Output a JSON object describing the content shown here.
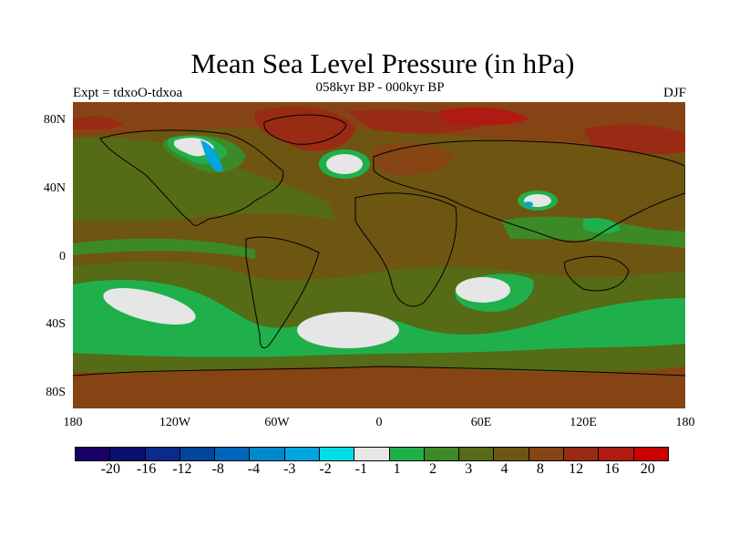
{
  "title": "Mean Sea Level Pressure (in hPa)",
  "subtitle": "058kyr BP - 000kyr BP",
  "left_label": "Expt = tdxoO-tdxoa",
  "right_label": "DJF",
  "lat_labels": [
    "80N",
    "40N",
    "0",
    "40S",
    "80S"
  ],
  "lon_labels": [
    "180",
    "120W",
    "60W",
    "0",
    "60E",
    "120E",
    "180"
  ],
  "colorbar": {
    "colors": [
      "#1a0066",
      "#080f6e",
      "#0a2a8c",
      "#00469c",
      "#0066bb",
      "#0088cc",
      "#00a6dd",
      "#00dde6",
      "#e6e6e6",
      "#1fb04c",
      "#3c8a27",
      "#556b16",
      "#6e5512",
      "#864414",
      "#992b14",
      "#b01a12",
      "#cc0000"
    ],
    "labels": [
      "-20",
      "-16",
      "-12",
      "-8",
      "-4",
      "-3",
      "-2",
      "-1",
      "1",
      "2",
      "3",
      "4",
      "8",
      "12",
      "16",
      "20"
    ]
  },
  "colors": {
    "background_field": "#6e5512",
    "ocean_positive": "#556b16",
    "high_anomaly": "#b01a12",
    "southern_belt": "#1fb04c",
    "near_zero": "#e6e6e6"
  }
}
